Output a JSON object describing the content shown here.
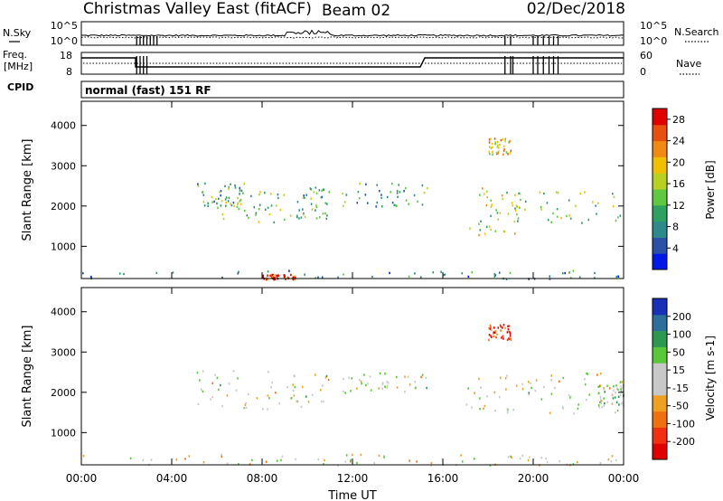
{
  "header": {
    "title": "Christmas Valley East (fitACF)",
    "beam": "Beam 02",
    "date": "02/Dec/2018"
  },
  "noise_panel": {
    "left_label": "N.Sky",
    "right_label": "N.Search",
    "left_ticks": [
      "10^5",
      "10^0"
    ],
    "right_ticks": [
      "10^5",
      "10^0"
    ]
  },
  "freq_panel": {
    "left_label_1": "Freq.",
    "left_label_2": "[MHz]",
    "right_label": "Nave",
    "left_ticks": [
      "18",
      "8"
    ],
    "right_ticks": [
      "60",
      "0"
    ]
  },
  "cpid": {
    "label": "CPID",
    "value": "normal (fast) 151 RF"
  },
  "colors": {
    "power_scale": [
      "#0018e8",
      "#2a50a8",
      "#2e8a8a",
      "#2fa060",
      "#5fc840",
      "#b8d020",
      "#f0c000",
      "#f08a10",
      "#e85010",
      "#e00000"
    ],
    "velocity_scale": [
      "#e00000",
      "#f03010",
      "#f07010",
      "#f0a020",
      "#c8c8c8",
      "#c8c8c8",
      "#58c838",
      "#2e9850",
      "#2e6e9a",
      "#1830b8"
    ]
  },
  "chart_data": [
    {
      "type": "heatmap",
      "name": "power-panel",
      "xlabel": "Time UT",
      "ylabel": "Slant Range [km]",
      "x_ticks": [
        "00:00",
        "04:00",
        "08:00",
        "12:00",
        "16:00",
        "20:00",
        "00:00"
      ],
      "y_ticks": [
        "1000",
        "2000",
        "3000",
        "4000"
      ],
      "ylim": [
        200,
        4600
      ],
      "colorbar": {
        "label": "Power [dB]",
        "ticks": [
          "4",
          "8",
          "12",
          "16",
          "20",
          "24",
          "28"
        ],
        "range": [
          0,
          30
        ]
      },
      "echo_regions": [
        {
          "t0": 5.1,
          "t1": 7.2,
          "r0": 1900,
          "r1": 2600,
          "power": 10
        },
        {
          "t0": 6.0,
          "t1": 9.5,
          "r0": 1600,
          "r1": 2400,
          "power": 14
        },
        {
          "t0": 9.5,
          "t1": 11.0,
          "r0": 1700,
          "r1": 2500,
          "power": 12
        },
        {
          "t0": 11.5,
          "t1": 15.3,
          "r0": 2000,
          "r1": 2600,
          "power": 10
        },
        {
          "t0": 17.0,
          "t1": 19.5,
          "r0": 1300,
          "r1": 2500,
          "power": 16
        },
        {
          "t0": 19.0,
          "t1": 24.0,
          "r0": 1600,
          "r1": 2400,
          "power": 14
        },
        {
          "t0": 18.0,
          "t1": 19.0,
          "r0": 3300,
          "r1": 3700,
          "power": 20
        },
        {
          "t0": 0.0,
          "t1": 24.0,
          "r0": 200,
          "r1": 420,
          "power": 8
        },
        {
          "t0": 8.0,
          "t1": 9.5,
          "r0": 200,
          "r1": 320,
          "power": 28
        }
      ]
    },
    {
      "type": "heatmap",
      "name": "velocity-panel",
      "xlabel": "Time UT",
      "ylabel": "Slant Range [km]",
      "x_ticks": [
        "00:00",
        "04:00",
        "08:00",
        "12:00",
        "16:00",
        "20:00",
        "00:00"
      ],
      "y_ticks": [
        "1000",
        "2000",
        "3000",
        "4000"
      ],
      "ylim": [
        200,
        4600
      ],
      "colorbar": {
        "label": "Velocity [m s-1]",
        "ticks": [
          "-200",
          "-100",
          "-50",
          "-15",
          "15",
          "50",
          "100",
          "200"
        ],
        "range": [
          -250,
          250
        ]
      },
      "echo_regions": [
        {
          "t0": 5.1,
          "t1": 11.0,
          "r0": 1600,
          "r1": 2600,
          "velocity": 0
        },
        {
          "t0": 11.5,
          "t1": 15.3,
          "r0": 2000,
          "r1": 2500,
          "velocity": 0
        },
        {
          "t0": 17.0,
          "t1": 24.0,
          "r0": 1500,
          "r1": 2500,
          "velocity": 0
        },
        {
          "t0": 18.0,
          "t1": 19.0,
          "r0": 3300,
          "r1": 3700,
          "velocity": -180
        },
        {
          "t0": 22.8,
          "t1": 24.0,
          "r0": 1700,
          "r1": 2200,
          "velocity": 40
        },
        {
          "t0": 0.0,
          "t1": 24.0,
          "r0": 200,
          "r1": 480,
          "velocity": -30
        }
      ]
    }
  ]
}
